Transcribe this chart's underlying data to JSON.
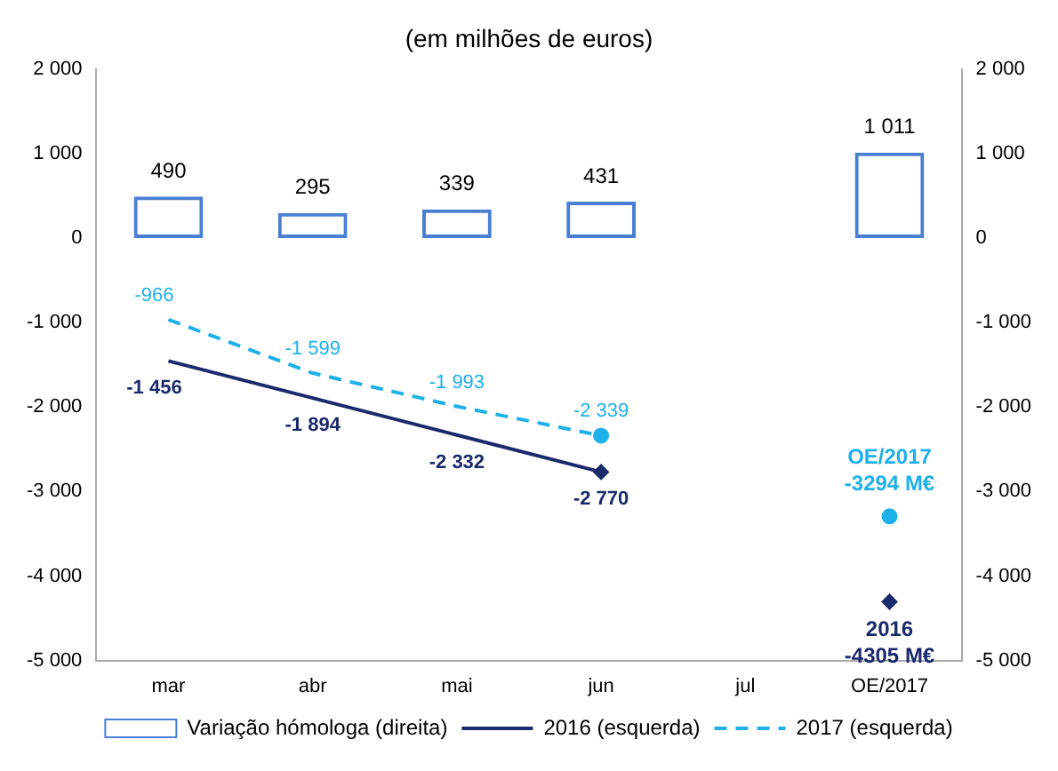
{
  "chart_data": {
    "type": "bar",
    "title": "(em milhões de euros)",
    "categories": [
      "mar",
      "abr",
      "mai",
      "jun",
      "jul",
      "OE/2017"
    ],
    "series": [
      {
        "name": "Variação hómologa (direita)",
        "axis": "y2",
        "color": "#4a7fd4",
        "values": [
          490,
          295,
          339,
          431,
          null,
          1011
        ],
        "value_labels": [
          "490",
          "295",
          "339",
          "431",
          null,
          "1 011"
        ]
      },
      {
        "name": "2016 (esquerda)",
        "type": "line",
        "color": "#1a2a6c",
        "line_style": "solid",
        "marker": "none",
        "values": [
          -1456,
          -1894,
          -2332,
          -2770,
          null,
          null
        ],
        "value_labels": [
          "-1 456",
          "-1 894",
          "-2 332",
          "-2 770",
          null,
          null
        ]
      },
      {
        "name": "2017 (esquerda)",
        "type": "line",
        "color": "#1fb0e8",
        "line_style": "dashed",
        "marker": "none",
        "values": [
          -966,
          -1599,
          -1993,
          -2339,
          null,
          null
        ],
        "value_labels": [
          "-966",
          "-1 599",
          "-1 993",
          "-2 339",
          null,
          null
        ]
      },
      {
        "type": "scatter",
        "color": "#1a2a6c",
        "marker": "diamond",
        "x": [
          "jun",
          "OE/2017"
        ],
        "values": [
          -2770,
          -4305
        ]
      },
      {
        "type": "scatter",
        "color": "#1fb0e8",
        "marker": "circle",
        "x": [
          "jun",
          "OE/2017"
        ],
        "values": [
          -2339,
          -3294
        ]
      }
    ],
    "annotations": [
      {
        "text": "OE/2017\n-3294 M€",
        "x": "OE/2017",
        "y": -3294
      },
      {
        "text": "2016\n-4305 M€",
        "x": "OE/2017",
        "y": -4305
      }
    ],
    "ylim": [
      -5000,
      2000
    ],
    "yticks": [
      {
        "value": -5000,
        "label": "-5 000"
      },
      {
        "value": -4000,
        "label": "-4 000"
      },
      {
        "value": -3000,
        "label": "-3 000"
      },
      {
        "value": -2000,
        "label": "-2 000"
      },
      {
        "value": -1000,
        "label": "-1 000"
      },
      0,
      {
        "value": 1000,
        "label": "1 000"
      },
      {
        "value": 2000,
        "label": "2 000"
      }
    ],
    "y2lim": [
      -5000,
      2000
    ],
    "y2ticks": [
      {
        "value": -5000,
        "label": "-5 000"
      },
      {
        "value": -4000,
        "label": "-4 000"
      },
      {
        "value": -3000,
        "label": "-3 000"
      },
      {
        "value": -2000,
        "label": "-2 000"
      },
      {
        "value": -1000,
        "label": "-1 000"
      },
      0,
      {
        "value": 1000,
        "label": "1 000"
      },
      {
        "value": 2000,
        "label": "2 000"
      }
    ],
    "grid": false,
    "legend": "bottom"
  }
}
